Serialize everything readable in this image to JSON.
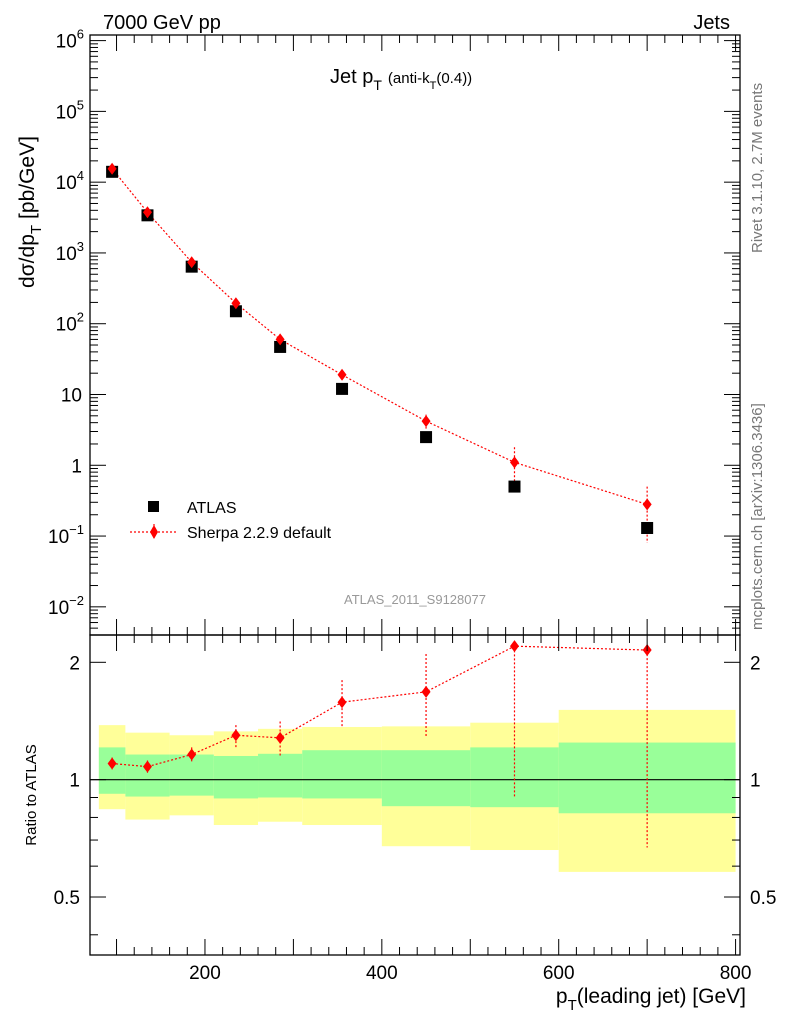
{
  "header": {
    "left": "7000 GeV pp",
    "right": "Jets"
  },
  "side_labels": {
    "rivet": "Rivet 3.1.10,  2.7M events",
    "mcplots": "mcplots.cern.ch [arXiv:1306.3436]"
  },
  "chart_data": [
    {
      "type": "scatter",
      "title": "Jet p_T (anti-k_T(0.4))",
      "title_parts": {
        "main": "Jet p",
        "sub1": "T",
        "mid": "(anti-k",
        "sub2": "T",
        "tail": "(0.4))"
      },
      "ylabel_parts": {
        "main": "dσ/dp",
        "sub": "T",
        "tail": "[pb/GeV]"
      },
      "yscale": "log",
      "ylim": [
        0.004,
        1200000
      ],
      "xlim": [
        70,
        805
      ],
      "yticks": [
        {
          "v": 1000000,
          "base": "10",
          "exp": "6"
        },
        {
          "v": 100000,
          "base": "10",
          "exp": "5"
        },
        {
          "v": 10000,
          "base": "10",
          "exp": "4"
        },
        {
          "v": 1000,
          "base": "10",
          "exp": "3"
        },
        {
          "v": 100,
          "base": "10",
          "exp": "2"
        },
        {
          "v": 10,
          "base": "10",
          "exp": ""
        },
        {
          "v": 1,
          "base": "1",
          "exp": ""
        },
        {
          "v": 0.1,
          "base": "10",
          "exp": "−1"
        },
        {
          "v": 0.01,
          "base": "10",
          "exp": "−2"
        }
      ],
      "watermark": "ATLAS_2011_S9128077",
      "legend": [
        {
          "label": "ATLAS",
          "marker": "square",
          "color": "#000000"
        },
        {
          "label": "Sherpa 2.2.9 default",
          "marker": "diamond",
          "color": "#ff0000"
        }
      ],
      "series": [
        {
          "name": "ATLAS",
          "x": [
            95,
            135,
            185,
            235,
            285,
            355,
            450,
            550,
            700
          ],
          "y": [
            14000,
            3400,
            640,
            150,
            47,
            12,
            2.5,
            0.5,
            0.13
          ]
        },
        {
          "name": "Sherpa 2.2.9 default",
          "x": [
            95,
            135,
            185,
            235,
            285,
            355,
            450,
            550,
            700
          ],
          "y": [
            15500,
            3750,
            740,
            195,
            60,
            19,
            4.2,
            1.1,
            0.28
          ],
          "y_err_low": [
            14800,
            3550,
            700,
            178,
            53,
            17.4,
            3.3,
            0.6,
            0.08
          ],
          "y_err_high": [
            16200,
            3950,
            790,
            215,
            67,
            20.8,
            5.2,
            1.8,
            0.5
          ]
        }
      ]
    },
    {
      "type": "scatter",
      "ylabel": "Ratio to ATLAS",
      "yscale": "log",
      "ylim": [
        0.355,
        2.35
      ],
      "xlim": [
        70,
        805
      ],
      "yticks": [
        {
          "v": 2,
          "label": "2"
        },
        {
          "v": 1,
          "label": "1"
        },
        {
          "v": 0.5,
          "label": "0.5"
        }
      ],
      "xticks": [
        {
          "v": 200,
          "label": "200"
        },
        {
          "v": 400,
          "label": "400"
        },
        {
          "v": 600,
          "label": "600"
        },
        {
          "v": 800,
          "label": "800"
        }
      ],
      "xlabel_parts": {
        "main": "p",
        "sub": "T",
        "tail": "(leading jet) [GeV]"
      },
      "bands": [
        {
          "x0": 80,
          "x1": 110,
          "g_lo": 0.92,
          "g_hi": 1.21,
          "y_lo": 0.84,
          "y_hi": 1.38
        },
        {
          "x0": 110,
          "x1": 160,
          "g_lo": 0.905,
          "g_hi": 1.16,
          "y_lo": 0.79,
          "y_hi": 1.32
        },
        {
          "x0": 160,
          "x1": 210,
          "g_lo": 0.91,
          "g_hi": 1.16,
          "y_lo": 0.81,
          "y_hi": 1.3
        },
        {
          "x0": 210,
          "x1": 260,
          "g_lo": 0.895,
          "g_hi": 1.15,
          "y_lo": 0.765,
          "y_hi": 1.33
        },
        {
          "x0": 260,
          "x1": 310,
          "g_lo": 0.9,
          "g_hi": 1.165,
          "y_lo": 0.78,
          "y_hi": 1.35
        },
        {
          "x0": 310,
          "x1": 400,
          "g_lo": 0.895,
          "g_hi": 1.19,
          "y_lo": 0.765,
          "y_hi": 1.365
        },
        {
          "x0": 400,
          "x1": 500,
          "g_lo": 0.855,
          "g_hi": 1.19,
          "y_lo": 0.675,
          "y_hi": 1.37
        },
        {
          "x0": 500,
          "x1": 600,
          "g_lo": 0.85,
          "g_hi": 1.21,
          "y_lo": 0.66,
          "y_hi": 1.4
        },
        {
          "x0": 600,
          "x1": 800,
          "g_lo": 0.82,
          "g_hi": 1.245,
          "y_lo": 0.58,
          "y_hi": 1.51
        }
      ],
      "series": [
        {
          "name": "Sherpa 2.2.9 default",
          "x": [
            95,
            135,
            185,
            235,
            285,
            355,
            450,
            550,
            700
          ],
          "y": [
            1.1,
            1.08,
            1.16,
            1.3,
            1.28,
            1.58,
            1.68,
            2.2,
            2.15
          ],
          "y_err_low": [
            1.06,
            1.04,
            1.11,
            1.21,
            1.15,
            1.36,
            1.28,
            0.9,
            0.67
          ],
          "y_err_high": [
            1.14,
            1.12,
            1.21,
            1.38,
            1.41,
            1.8,
            2.1,
            2.25,
            2.2
          ]
        }
      ]
    }
  ]
}
